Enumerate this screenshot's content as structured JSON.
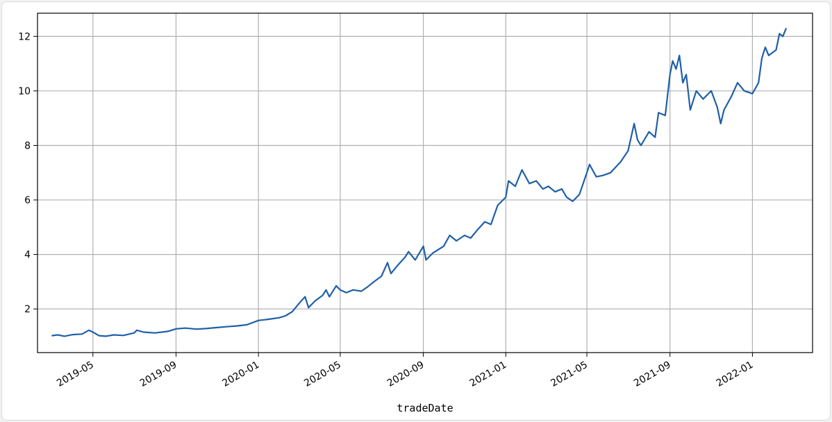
{
  "chart_data": {
    "type": "line",
    "title": "",
    "xlabel": "tradeDate",
    "ylabel": "",
    "grid": true,
    "legend": "none",
    "xlim": [
      "2019-02-08",
      "2022-03-31"
    ],
    "ylim": [
      0.4,
      12.85
    ],
    "x_ticks": [
      {
        "date": "2019-05-01",
        "label": "2019-05"
      },
      {
        "date": "2019-09-01",
        "label": "2019-09"
      },
      {
        "date": "2020-01-01",
        "label": "2020-01"
      },
      {
        "date": "2020-05-01",
        "label": "2020-05"
      },
      {
        "date": "2020-09-01",
        "label": "2020-09"
      },
      {
        "date": "2021-01-01",
        "label": "2021-01"
      },
      {
        "date": "2021-05-01",
        "label": "2021-05"
      },
      {
        "date": "2021-09-01",
        "label": "2021-09"
      },
      {
        "date": "2022-01-01",
        "label": "2022-01"
      }
    ],
    "y_ticks": [
      2,
      4,
      6,
      8,
      10,
      12
    ],
    "colors": {
      "line": "#1f5fa8",
      "grid": "#b0b0b0",
      "frame": "#000000"
    },
    "series": [
      {
        "points": [
          [
            "2019-03-01",
            1.02
          ],
          [
            "2019-03-10",
            1.05
          ],
          [
            "2019-03-20",
            1.0
          ],
          [
            "2019-04-01",
            1.06
          ],
          [
            "2019-04-15",
            1.08
          ],
          [
            "2019-04-25",
            1.22
          ],
          [
            "2019-05-01",
            1.15
          ],
          [
            "2019-05-10",
            1.02
          ],
          [
            "2019-05-20",
            1.0
          ],
          [
            "2019-06-01",
            1.05
          ],
          [
            "2019-06-15",
            1.03
          ],
          [
            "2019-07-01",
            1.12
          ],
          [
            "2019-07-05",
            1.22
          ],
          [
            "2019-07-15",
            1.15
          ],
          [
            "2019-08-01",
            1.12
          ],
          [
            "2019-08-20",
            1.18
          ],
          [
            "2019-09-01",
            1.27
          ],
          [
            "2019-09-15",
            1.3
          ],
          [
            "2019-10-01",
            1.26
          ],
          [
            "2019-10-15",
            1.28
          ],
          [
            "2019-11-01",
            1.32
          ],
          [
            "2019-11-15",
            1.35
          ],
          [
            "2019-12-01",
            1.38
          ],
          [
            "2019-12-15",
            1.42
          ],
          [
            "2020-01-01",
            1.58
          ],
          [
            "2020-01-15",
            1.62
          ],
          [
            "2020-02-01",
            1.68
          ],
          [
            "2020-02-10",
            1.75
          ],
          [
            "2020-02-20",
            1.9
          ],
          [
            "2020-03-01",
            2.2
          ],
          [
            "2020-03-10",
            2.45
          ],
          [
            "2020-03-15",
            2.05
          ],
          [
            "2020-03-25",
            2.3
          ],
          [
            "2020-04-05",
            2.5
          ],
          [
            "2020-04-10",
            2.7
          ],
          [
            "2020-04-15",
            2.45
          ],
          [
            "2020-04-25",
            2.85
          ],
          [
            "2020-05-01",
            2.7
          ],
          [
            "2020-05-10",
            2.6
          ],
          [
            "2020-05-20",
            2.7
          ],
          [
            "2020-06-01",
            2.65
          ],
          [
            "2020-06-10",
            2.8
          ],
          [
            "2020-06-20",
            3.0
          ],
          [
            "2020-07-01",
            3.2
          ],
          [
            "2020-07-10",
            3.7
          ],
          [
            "2020-07-15",
            3.3
          ],
          [
            "2020-07-25",
            3.6
          ],
          [
            "2020-08-05",
            3.9
          ],
          [
            "2020-08-10",
            4.1
          ],
          [
            "2020-08-20",
            3.8
          ],
          [
            "2020-09-01",
            4.3
          ],
          [
            "2020-09-05",
            3.8
          ],
          [
            "2020-09-15",
            4.05
          ],
          [
            "2020-10-01",
            4.3
          ],
          [
            "2020-10-10",
            4.7
          ],
          [
            "2020-10-20",
            4.5
          ],
          [
            "2020-11-01",
            4.7
          ],
          [
            "2020-11-10",
            4.6
          ],
          [
            "2020-11-20",
            4.9
          ],
          [
            "2020-12-01",
            5.2
          ],
          [
            "2020-12-10",
            5.1
          ],
          [
            "2020-12-20",
            5.8
          ],
          [
            "2021-01-01",
            6.1
          ],
          [
            "2021-01-05",
            6.7
          ],
          [
            "2021-01-15",
            6.5
          ],
          [
            "2021-01-25",
            7.1
          ],
          [
            "2021-02-05",
            6.6
          ],
          [
            "2021-02-15",
            6.7
          ],
          [
            "2021-02-25",
            6.4
          ],
          [
            "2021-03-05",
            6.5
          ],
          [
            "2021-03-15",
            6.3
          ],
          [
            "2021-03-25",
            6.4
          ],
          [
            "2021-04-01",
            6.1
          ],
          [
            "2021-04-10",
            5.95
          ],
          [
            "2021-04-20",
            6.2
          ],
          [
            "2021-05-01",
            7.0
          ],
          [
            "2021-05-05",
            7.3
          ],
          [
            "2021-05-15",
            6.85
          ],
          [
            "2021-05-25",
            6.9
          ],
          [
            "2021-06-05",
            7.0
          ],
          [
            "2021-06-20",
            7.4
          ],
          [
            "2021-07-01",
            7.8
          ],
          [
            "2021-07-10",
            8.8
          ],
          [
            "2021-07-15",
            8.2
          ],
          [
            "2021-07-20",
            8.0
          ],
          [
            "2021-08-01",
            8.5
          ],
          [
            "2021-08-10",
            8.3
          ],
          [
            "2021-08-15",
            9.2
          ],
          [
            "2021-08-25",
            9.1
          ],
          [
            "2021-09-01",
            10.6
          ],
          [
            "2021-09-05",
            11.1
          ],
          [
            "2021-09-10",
            10.8
          ],
          [
            "2021-09-15",
            11.3
          ],
          [
            "2021-09-20",
            10.3
          ],
          [
            "2021-09-25",
            10.6
          ],
          [
            "2021-10-01",
            9.3
          ],
          [
            "2021-10-10",
            10.0
          ],
          [
            "2021-10-20",
            9.7
          ],
          [
            "2021-11-01",
            10.0
          ],
          [
            "2021-11-10",
            9.4
          ],
          [
            "2021-11-15",
            8.8
          ],
          [
            "2021-11-20",
            9.3
          ],
          [
            "2021-12-01",
            9.8
          ],
          [
            "2021-12-10",
            10.3
          ],
          [
            "2021-12-20",
            10.0
          ],
          [
            "2022-01-01",
            9.9
          ],
          [
            "2022-01-10",
            10.3
          ],
          [
            "2022-01-15",
            11.2
          ],
          [
            "2022-01-20",
            11.6
          ],
          [
            "2022-01-25",
            11.3
          ],
          [
            "2022-02-05",
            11.5
          ],
          [
            "2022-02-10",
            12.1
          ],
          [
            "2022-02-15",
            12.0
          ],
          [
            "2022-02-20",
            12.3
          ]
        ]
      }
    ]
  }
}
